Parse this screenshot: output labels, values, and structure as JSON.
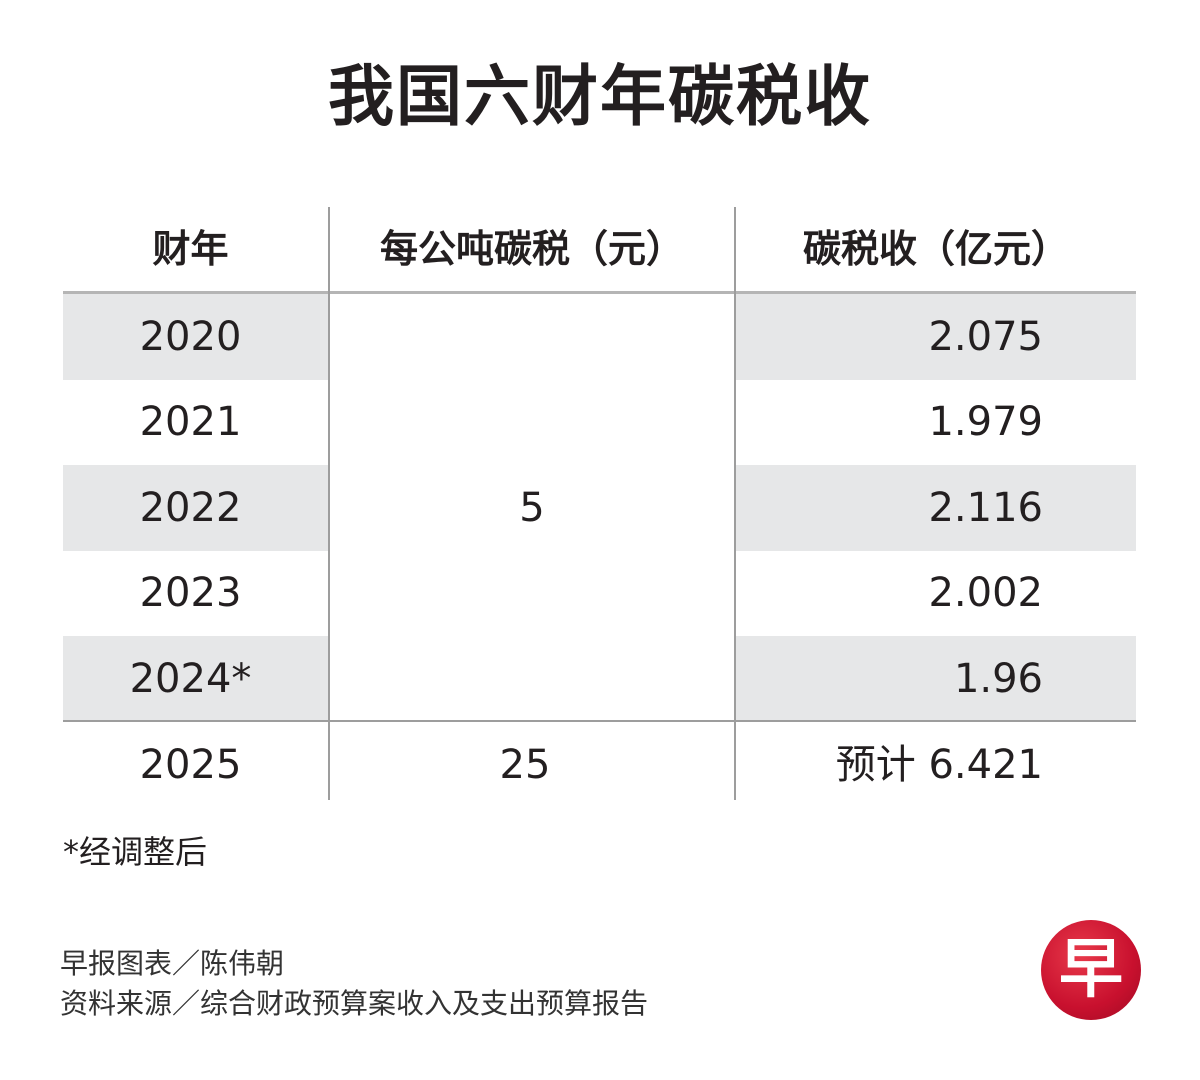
{
  "title": "我国六财年碳税收",
  "chart_data": {
    "type": "table",
    "columns": [
      "财年",
      "每公吨碳税（元）",
      "碳税收（亿元）"
    ],
    "rows": [
      {
        "year": "2020",
        "rate": "5",
        "revenue": "2.075"
      },
      {
        "year": "2021",
        "rate": "5",
        "revenue": "1.979"
      },
      {
        "year": "2022",
        "rate": "5",
        "revenue": "2.116"
      },
      {
        "year": "2023",
        "rate": "5",
        "revenue": "2.002"
      },
      {
        "year": "2024*",
        "rate": "5",
        "revenue": "1.96"
      },
      {
        "year": "2025",
        "rate": "25",
        "revenue": "预计 6.421"
      }
    ],
    "merged_rate_label": "5",
    "final_rate_label": "25"
  },
  "footnote": "*经调整后",
  "credits": {
    "graphic": "早报图表／陈伟朝",
    "source": "资料来源／综合财政预算案收入及支出预算报告"
  },
  "logo": {
    "text": "早",
    "color": "#c8102e"
  }
}
